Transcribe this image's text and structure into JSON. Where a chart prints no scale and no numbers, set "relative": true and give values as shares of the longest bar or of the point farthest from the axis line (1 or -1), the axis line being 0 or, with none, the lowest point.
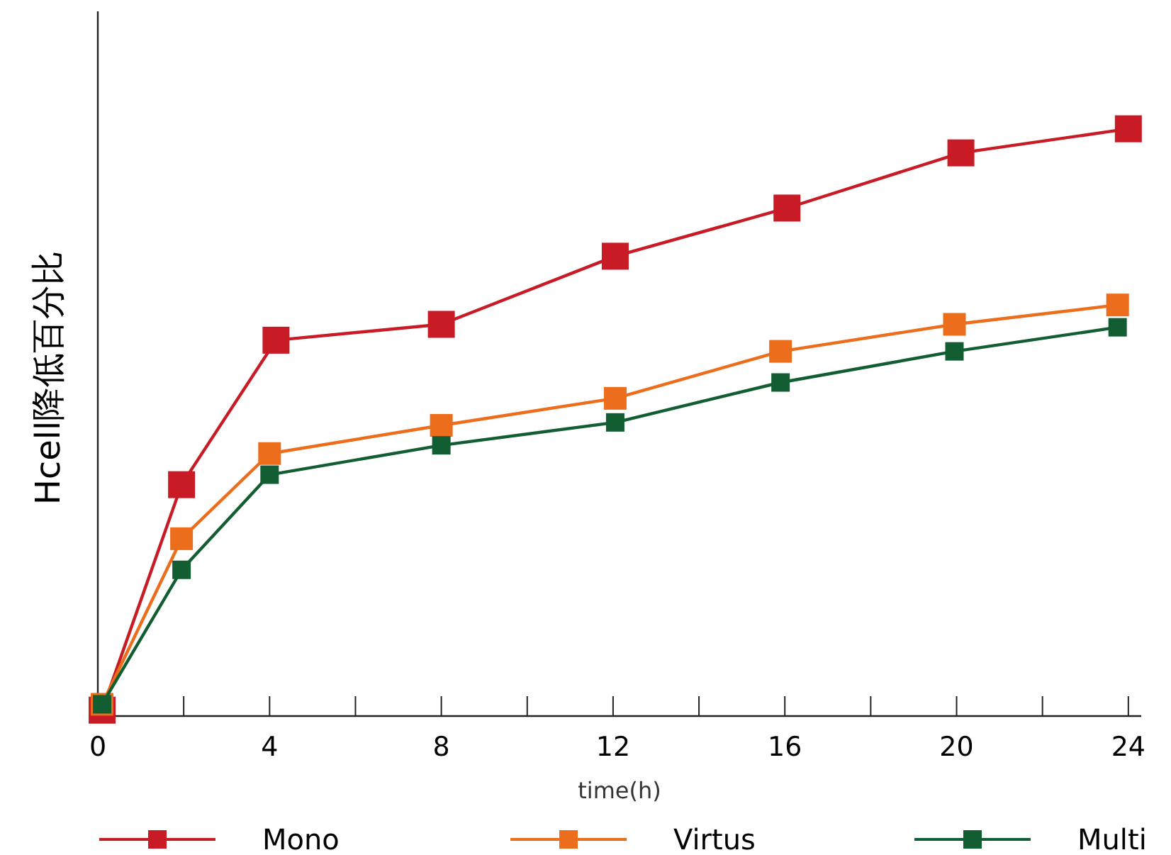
{
  "chart_data": {
    "type": "line",
    "xlabel": "time(h)",
    "ylabel": "Hcell降低百分比",
    "relative": true,
    "xlim": [
      0,
      24.3
    ],
    "xticks": [
      0,
      {
        "value": 2,
        "label": null
      },
      4,
      {
        "value": 6,
        "label": null
      },
      8,
      {
        "value": 10,
        "label": null
      },
      12,
      {
        "value": 14,
        "label": null
      },
      16,
      {
        "value": 18,
        "label": null
      },
      20,
      {
        "value": 22,
        "label": null
      },
      24
    ],
    "marker": "square",
    "line_style": "solid",
    "legend": "bottom",
    "series": [
      {
        "name": "Mono",
        "color": "#c81b25",
        "x": [
          0.1,
          1.95,
          4.15,
          8,
          12.05,
          16.05,
          20.1,
          24
        ],
        "values": [
          0.01,
          0.394,
          0.64,
          0.667,
          0.783,
          0.865,
          0.959,
          1
        ]
      },
      {
        "name": "Virtus",
        "color": "#ec6d1b",
        "x": [
          0.1,
          1.95,
          4,
          8,
          12.05,
          15.9,
          19.95,
          23.75
        ],
        "values": [
          0.02,
          0.302,
          0.447,
          0.495,
          0.541,
          0.621,
          0.667,
          0.7
        ]
      },
      {
        "name": "Multi",
        "color": "#125e32",
        "x": [
          0.1,
          1.95,
          4,
          8,
          12.05,
          15.9,
          19.95,
          23.75
        ],
        "values": [
          0.02,
          0.249,
          0.411,
          0.461,
          0.5,
          0.568,
          0.621,
          0.662
        ]
      }
    ]
  }
}
